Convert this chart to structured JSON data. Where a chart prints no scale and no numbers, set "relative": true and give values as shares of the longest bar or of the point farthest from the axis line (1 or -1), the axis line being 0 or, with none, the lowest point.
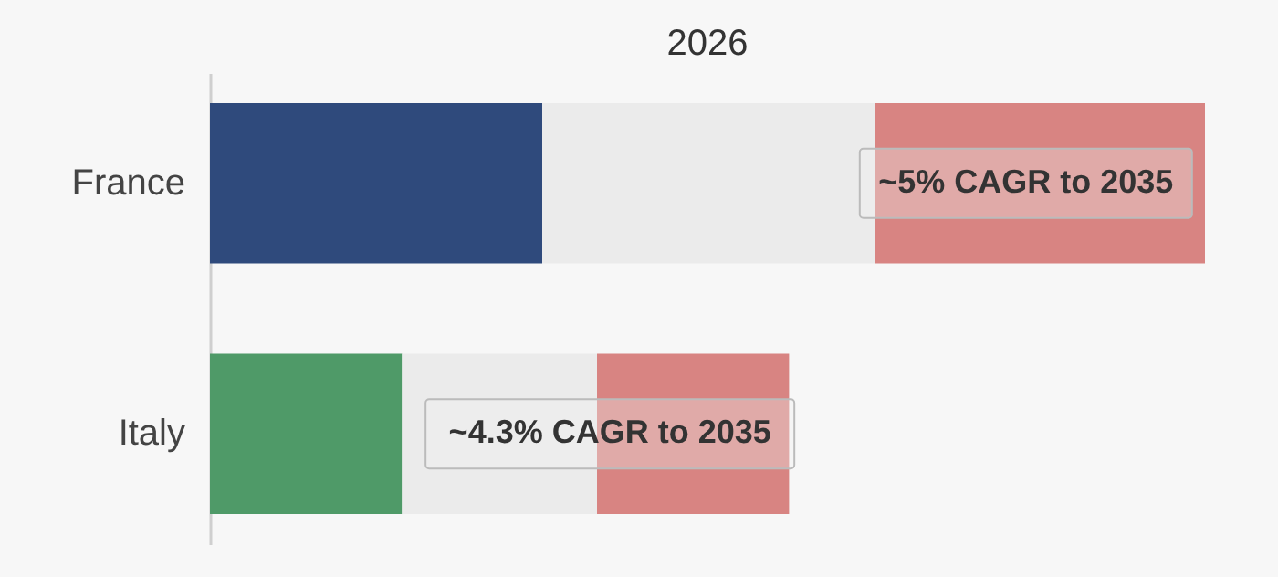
{
  "chart_data": {
    "type": "bar",
    "orientation": "horizontal",
    "stacked": true,
    "relative": true,
    "title": "2026",
    "categories": [
      "France",
      "Italy"
    ],
    "series": [
      {
        "colors": [
          "#2f4a7c",
          "#4f9a68"
        ],
        "values": [
          0.334,
          0.193
        ]
      },
      {
        "color": "#ebebeb",
        "values": [
          0.334,
          0.196
        ]
      },
      {
        "color": "#d88482",
        "values": [
          0.332,
          0.193
        ]
      }
    ],
    "annotations": [
      "~5% CAGR to 2035",
      "~4.3% CAGR to 2035"
    ],
    "grid": false,
    "legend": false
  }
}
